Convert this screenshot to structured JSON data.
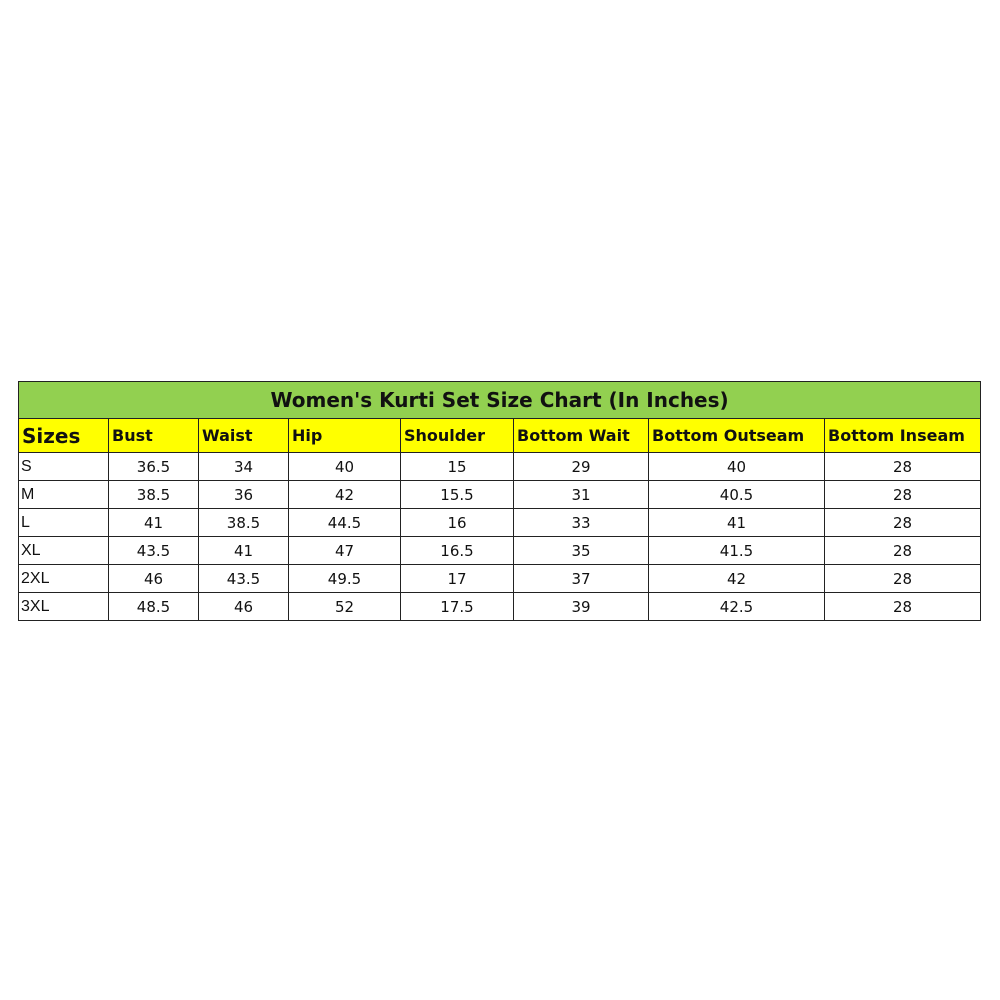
{
  "title": "Women's Kurti Set Size Chart (In Inches)",
  "colors": {
    "title_bg": "#92d050",
    "header_bg": "#ffff00",
    "border": "#222222"
  },
  "headers": [
    "Sizes",
    "Bust",
    "Waist",
    "Hip",
    "Shoulder",
    "Bottom Wait",
    "Bottom Outseam",
    "Bottom Inseam"
  ],
  "rows": [
    [
      "S",
      "36.5",
      "34",
      "40",
      "15",
      "29",
      "40",
      "28"
    ],
    [
      "M",
      "38.5",
      "36",
      "42",
      "15.5",
      "31",
      "40.5",
      "28"
    ],
    [
      "L",
      "41",
      "38.5",
      "44.5",
      "16",
      "33",
      "41",
      "28"
    ],
    [
      "XL",
      "43.5",
      "41",
      "47",
      "16.5",
      "35",
      "41.5",
      "28"
    ],
    [
      "2XL",
      "46",
      "43.5",
      "49.5",
      "17",
      "37",
      "42",
      "28"
    ],
    [
      "3XL",
      "48.5",
      "46",
      "52",
      "17.5",
      "39",
      "42.5",
      "28"
    ]
  ]
}
